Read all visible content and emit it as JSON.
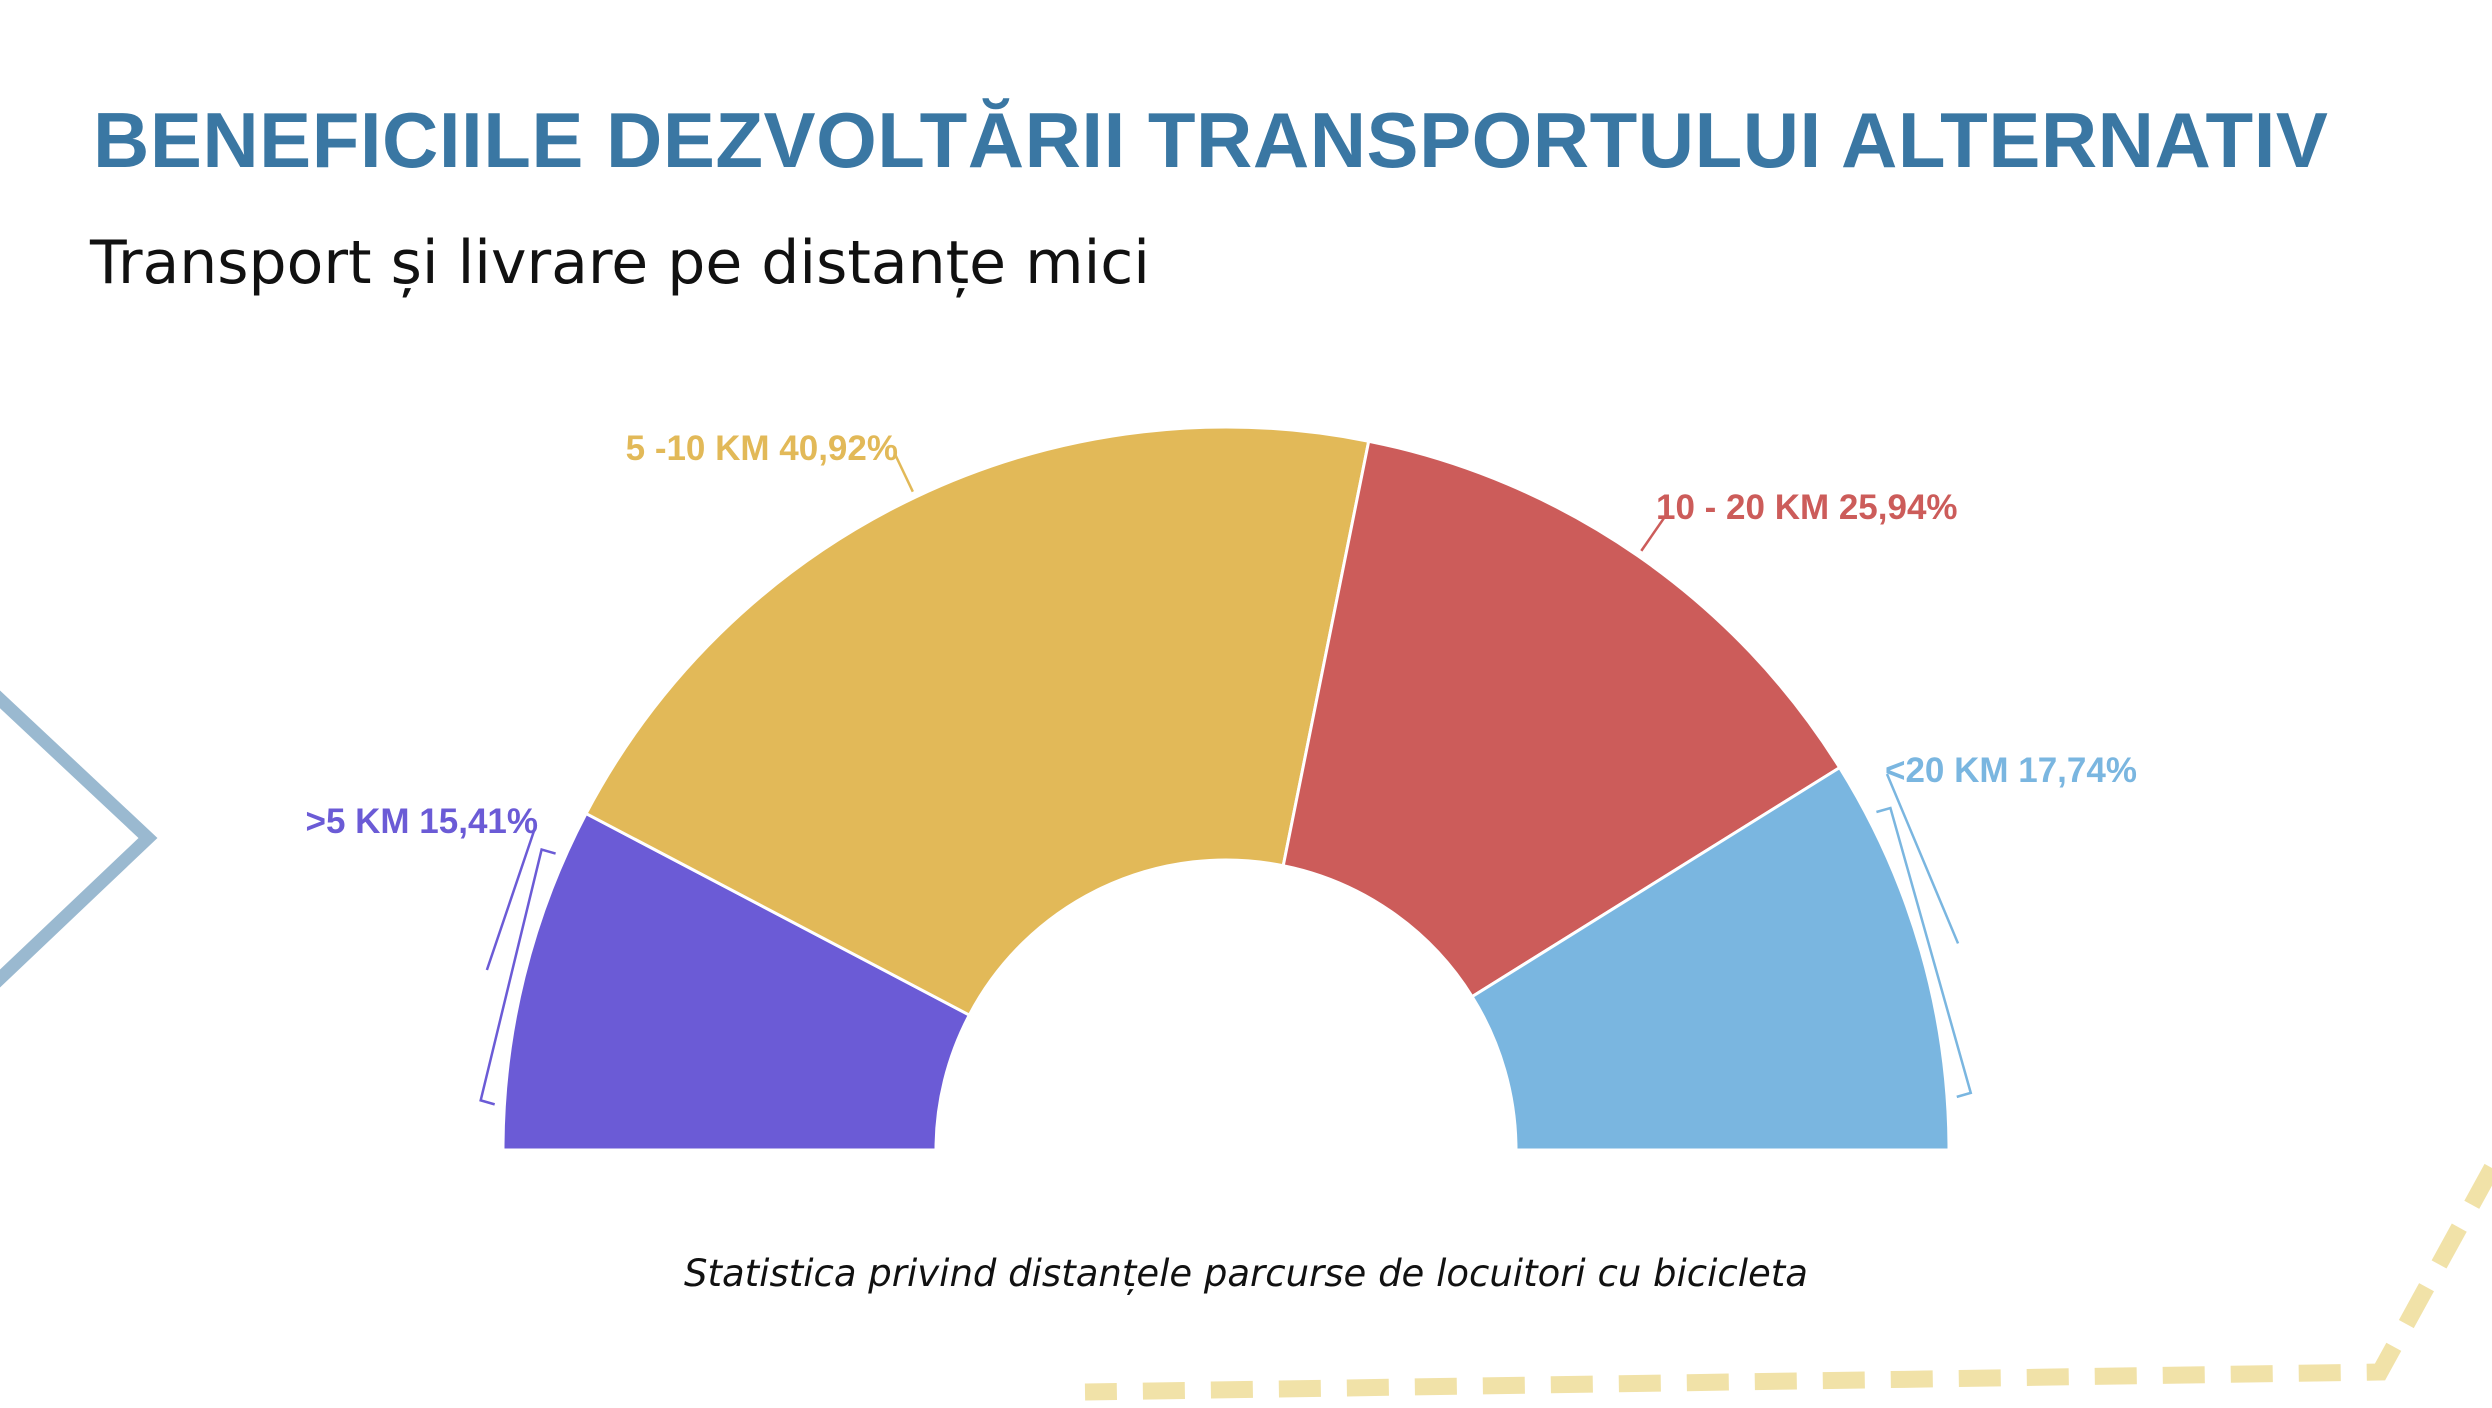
{
  "slide": {
    "title": "BENEFICIILE DEZVOLTĂRII TRANSPORTULUI ALTERNATIV",
    "subtitle": "Transport și livrare pe distanțe mici",
    "caption": "Statistica privind distanțele parcurse de locuitori cu bicicleta"
  },
  "colors": {
    "title": "#3a77a3",
    "chevron": "#9ab9d0",
    "dashes": "#f1e2a8"
  },
  "chart_data": {
    "type": "pie",
    "variant": "half-donut",
    "title": "",
    "slices": [
      {
        "label": ">5 KM 15,41%",
        "value": 15.41,
        "color": "#6b5bd6"
      },
      {
        "label": "5 -10 KM 40,92%",
        "value": 40.92,
        "color": "#e2b958"
      },
      {
        "label": "10 - 20 KM 25,94%",
        "value": 25.94,
        "color": "#cc5c5a"
      },
      {
        "label": "<20 KM 17,74%",
        "value": 17.74,
        "color": "#7ab6e0"
      }
    ]
  }
}
